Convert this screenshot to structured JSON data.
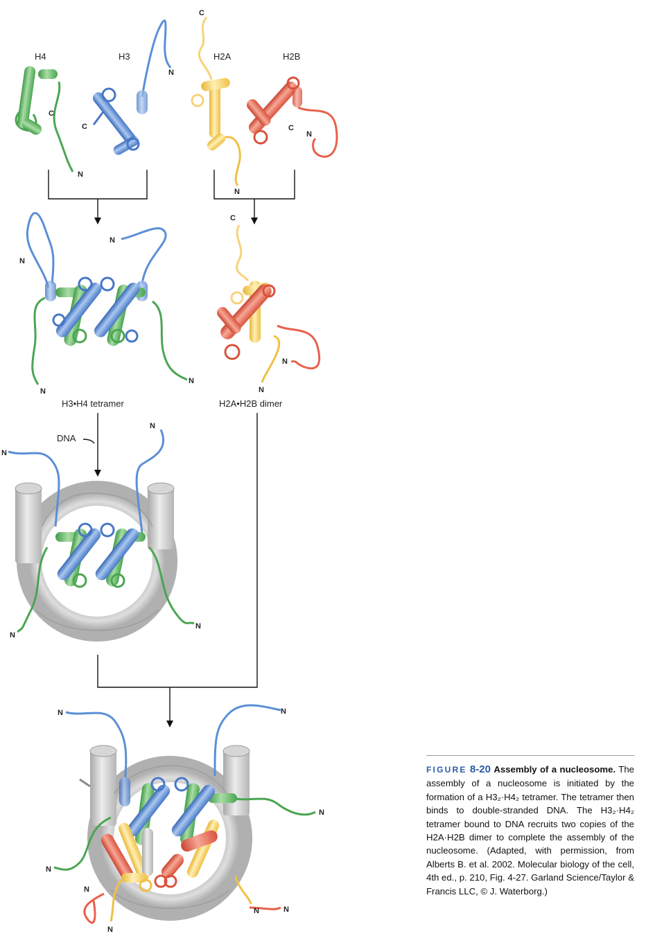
{
  "labels": {
    "h4": "H4",
    "h3": "H3",
    "h2a": "H2A",
    "h2b": "H2B",
    "tetramer": "H3•H4 tetramer",
    "dimer": "H2A•H2B dimer",
    "dna": "DNA"
  },
  "termini": {
    "n": "N",
    "c": "C"
  },
  "caption": {
    "figure_word": "FIGURE",
    "figure_number": "8-20",
    "title": "Assembly of a nucleosome.",
    "body": "The assembly of a nucleosome is initiated by the formation of a H3₂·H4₂ tetramer. The tetramer then binds to double-stranded DNA. The H3₂·H4₂ tetramer bound to DNA recruits two copies of the H2A·H2B dimer to complete the assembly of the nucleosome. (Adapted, with permission, from Alberts B. et al. 2002. Molecular biology of the cell, 4th ed., p. 210, Fig. 4-27. Garland Science/Taylor & Francis LLC, © J. Waterborg.)"
  },
  "colors": {
    "h4": "#5cb85c",
    "h3": "#5b8fd6",
    "h2a": "#f6c84c",
    "h2b": "#e8604c",
    "dna": "#c9c9c9",
    "flow": "#111111"
  }
}
